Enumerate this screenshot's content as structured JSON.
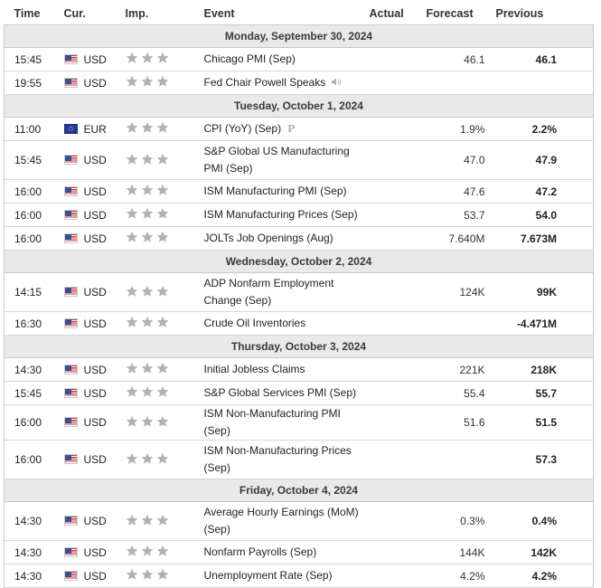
{
  "columns": {
    "time": "Time",
    "currency": "Cur.",
    "importance": "Imp.",
    "event": "Event",
    "actual": "Actual",
    "forecast": "Forecast",
    "previous": "Previous"
  },
  "groups": [
    {
      "date": "Monday, September 30, 2024",
      "events": [
        {
          "time": "15:45",
          "currency": "USD",
          "flag": "us-flag-icon",
          "importance": 3,
          "event": "Chicago PMI (Sep)",
          "actual": "",
          "forecast": "46.1",
          "previous": "46.1",
          "icon": ""
        },
        {
          "time": "19:55",
          "currency": "USD",
          "flag": "us-flag-icon",
          "importance": 3,
          "event": "Fed Chair Powell Speaks",
          "actual": "",
          "forecast": "",
          "previous": "",
          "icon": "speaker-icon"
        }
      ]
    },
    {
      "date": "Tuesday, October 1, 2024",
      "events": [
        {
          "time": "11:00",
          "currency": "EUR",
          "flag": "eu-flag-icon",
          "importance": 3,
          "event": "CPI (YoY) (Sep)",
          "actual": "",
          "forecast": "1.9%",
          "previous": "2.2%",
          "icon": "preliminary-icon"
        },
        {
          "time": "15:45",
          "currency": "USD",
          "flag": "us-flag-icon",
          "importance": 3,
          "event": "S&P Global US Manufacturing PMI (Sep)",
          "actual": "",
          "forecast": "47.0",
          "previous": "47.9",
          "icon": ""
        },
        {
          "time": "16:00",
          "currency": "USD",
          "flag": "us-flag-icon",
          "importance": 3,
          "event": "ISM Manufacturing PMI (Sep)",
          "actual": "",
          "forecast": "47.6",
          "previous": "47.2",
          "icon": ""
        },
        {
          "time": "16:00",
          "currency": "USD",
          "flag": "us-flag-icon",
          "importance": 3,
          "event": "ISM Manufacturing Prices (Sep)",
          "actual": "",
          "forecast": "53.7",
          "previous": "54.0",
          "icon": ""
        },
        {
          "time": "16:00",
          "currency": "USD",
          "flag": "us-flag-icon",
          "importance": 3,
          "event": "JOLTs Job Openings (Aug)",
          "actual": "",
          "forecast": "7.640M",
          "previous": "7.673M",
          "icon": ""
        }
      ]
    },
    {
      "date": "Wednesday, October 2, 2024",
      "events": [
        {
          "time": "14:15",
          "currency": "USD",
          "flag": "us-flag-icon",
          "importance": 3,
          "event": "ADP Nonfarm Employment Change (Sep)",
          "actual": "",
          "forecast": "124K",
          "previous": "99K",
          "icon": ""
        },
        {
          "time": "16:30",
          "currency": "USD",
          "flag": "us-flag-icon",
          "importance": 3,
          "event": "Crude Oil Inventories",
          "actual": "",
          "forecast": "",
          "previous": "-4.471M",
          "icon": ""
        }
      ]
    },
    {
      "date": "Thursday, October 3, 2024",
      "events": [
        {
          "time": "14:30",
          "currency": "USD",
          "flag": "us-flag-icon",
          "importance": 3,
          "event": "Initial Jobless Claims",
          "actual": "",
          "forecast": "221K",
          "previous": "218K",
          "icon": ""
        },
        {
          "time": "15:45",
          "currency": "USD",
          "flag": "us-flag-icon",
          "importance": 3,
          "event": "S&P Global Services PMI (Sep)",
          "actual": "",
          "forecast": "55.4",
          "previous": "55.7",
          "icon": ""
        },
        {
          "time": "16:00",
          "currency": "USD",
          "flag": "us-flag-icon",
          "importance": 3,
          "event": "ISM Non-Manufacturing PMI (Sep)",
          "actual": "",
          "forecast": "51.6",
          "previous": "51.5",
          "icon": ""
        },
        {
          "time": "16:00",
          "currency": "USD",
          "flag": "us-flag-icon",
          "importance": 3,
          "event": "ISM Non-Manufacturing Prices (Sep)",
          "actual": "",
          "forecast": "",
          "previous": "57.3",
          "icon": ""
        }
      ]
    },
    {
      "date": "Friday, October 4, 2024",
      "events": [
        {
          "time": "14:30",
          "currency": "USD",
          "flag": "us-flag-icon",
          "importance": 3,
          "event": "Average Hourly Earnings (MoM) (Sep)",
          "actual": "",
          "forecast": "0.3%",
          "previous": "0.4%",
          "icon": ""
        },
        {
          "time": "14:30",
          "currency": "USD",
          "flag": "us-flag-icon",
          "importance": 3,
          "event": "Nonfarm Payrolls (Sep)",
          "actual": "",
          "forecast": "144K",
          "previous": "142K",
          "icon": ""
        },
        {
          "time": "14:30",
          "currency": "USD",
          "flag": "us-flag-icon",
          "importance": 3,
          "event": "Unemployment Rate (Sep)",
          "actual": "",
          "forecast": "4.2%",
          "previous": "4.2%",
          "icon": ""
        }
      ]
    }
  ],
  "colors": {
    "day_header_bg": "#e9e9e9",
    "star_color": "#b2b2b2",
    "border": "#c8c8c8"
  }
}
